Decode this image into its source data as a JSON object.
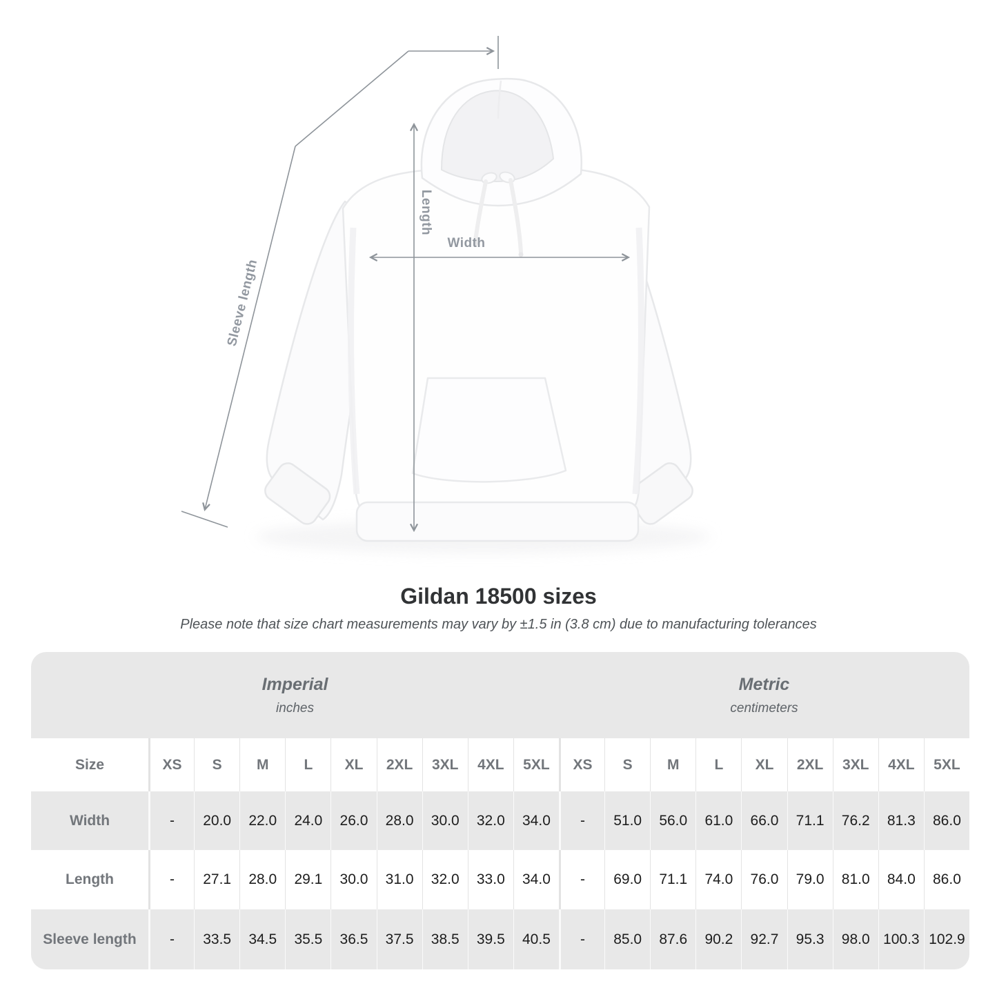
{
  "title": "Gildan 18500 sizes",
  "subtitle": "Please note that size chart measurements may vary by ±1.5 in (3.8 cm) due to manufacturing tolerances",
  "figure": {
    "sleeve_length_label": "Sleeve length",
    "length_label": "Length",
    "width_label": "Width"
  },
  "table": {
    "sections": [
      {
        "label": "Imperial",
        "sublabel": "inches"
      },
      {
        "label": "Metric",
        "sublabel": "centimeters"
      }
    ],
    "size_label": "Size",
    "sizes": [
      "XS",
      "S",
      "M",
      "L",
      "XL",
      "2XL",
      "3XL",
      "4XL",
      "5XL"
    ],
    "rows": [
      {
        "label": "Width",
        "imperial": [
          "-",
          "20.0",
          "22.0",
          "24.0",
          "26.0",
          "28.0",
          "30.0",
          "32.0",
          "34.0"
        ],
        "metric": [
          "-",
          "51.0",
          "56.0",
          "61.0",
          "66.0",
          "71.1",
          "76.2",
          "81.3",
          "86.0"
        ]
      },
      {
        "label": "Length",
        "imperial": [
          "-",
          "27.1",
          "28.0",
          "29.1",
          "30.0",
          "31.0",
          "32.0",
          "33.0",
          "34.0"
        ],
        "metric": [
          "-",
          "69.0",
          "71.1",
          "74.0",
          "76.0",
          "79.0",
          "81.0",
          "84.0",
          "86.0"
        ]
      },
      {
        "label": "Sleeve length",
        "imperial": [
          "-",
          "33.5",
          "34.5",
          "35.5",
          "36.5",
          "37.5",
          "38.5",
          "39.5",
          "40.5"
        ],
        "metric": [
          "-",
          "85.0",
          "87.6",
          "90.2",
          "92.7",
          "95.3",
          "98.0",
          "100.3",
          "102.9"
        ]
      }
    ]
  },
  "colors": {
    "table_band_gray": "#e8e8e8",
    "header_text_gray": "#72767b",
    "value_text": "#1d1d1d",
    "measure_line_gray": "#8e949a",
    "measure_label_gray": "#9298a0",
    "title_text": "#313335"
  }
}
